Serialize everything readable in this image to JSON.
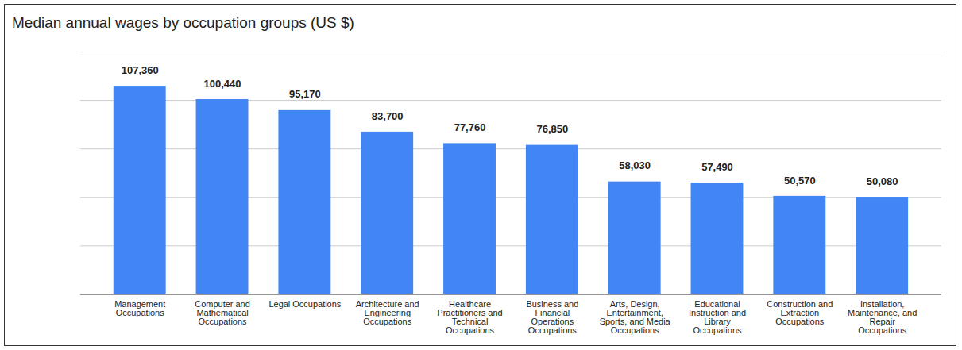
{
  "chart_data": {
    "type": "bar",
    "title": "Median annual wages by occupation groups (US $)",
    "categories": [
      "Management Occupations",
      "Computer and Mathematical Occupations",
      "Legal Occupations",
      "Architecture and Engineering Occupations",
      "Healthcare Practitioners and Technical Occupations",
      "Business and Financial Operations Occupations",
      "Arts, Design, Entertainment, Sports, and Media Occupations",
      "Educational Instruction and Library Occupations",
      "Construction and Extraction Occupations",
      "Installation, Maintenance, and Repair Occupations"
    ],
    "values": [
      107360,
      100440,
      95170,
      83700,
      77760,
      76850,
      58030,
      57490,
      50570,
      50080
    ],
    "value_labels": [
      "107,360",
      "100,440",
      "95,170",
      "83,700",
      "77,760",
      "76,850",
      "58,030",
      "57,490",
      "50,570",
      "50,080"
    ],
    "color": "#4285f4",
    "ylim": [
      0,
      125000
    ],
    "yticks": [
      0,
      25000,
      50000,
      75000,
      100000,
      125000
    ],
    "grid": true,
    "data_labels": true,
    "tick_labels": "x"
  }
}
